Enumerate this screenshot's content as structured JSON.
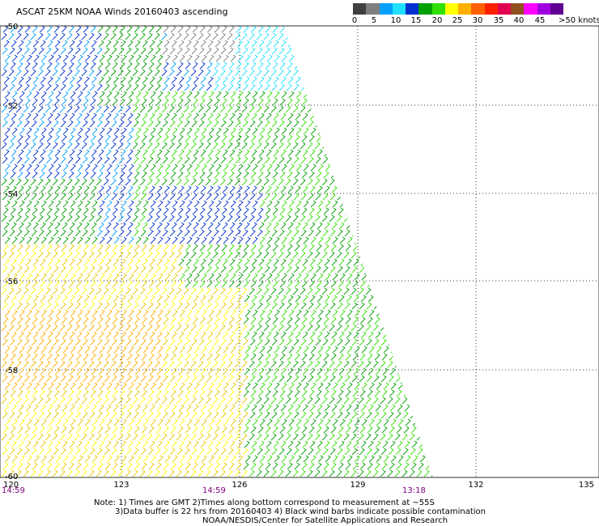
{
  "title": "ASCAT 25KM NOAA Winds 20160403 ascending",
  "legend": {
    "colors": [
      "#404040",
      "#7f7f7f",
      "#00a0ff",
      "#20e0ff",
      "#0030d0",
      "#00a000",
      "#30e000",
      "#ffff00",
      "#ffb000",
      "#ff6000",
      "#ff2000",
      "#e00050",
      "#905020",
      "#ff00ff",
      "#a000e0",
      "#600090"
    ],
    "labels": [
      "0",
      "5",
      "10",
      "15",
      "20",
      "25",
      "30",
      "35",
      "40",
      "45",
      ">50 knots"
    ]
  },
  "axes": {
    "lon_labels": [
      "120",
      "123",
      "126",
      "129",
      "132",
      "135"
    ],
    "lat_labels": [
      "-50",
      "-52",
      "-54",
      "-56",
      "-58",
      "-60"
    ]
  },
  "times": {
    "t1": "14:59",
    "t2": "14:59",
    "t3": "13:18"
  },
  "notes": {
    "line1": "Note: 1) Times are GMT 2)Times along bottom correspond to measurement at ~55S",
    "line2": "3)Data buffer is 22 hrs from 20160403 4) Black wind barbs indicate possible contamination",
    "line3": "NOAA/NESDIS/Center for Satellite Applications and Research"
  }
}
